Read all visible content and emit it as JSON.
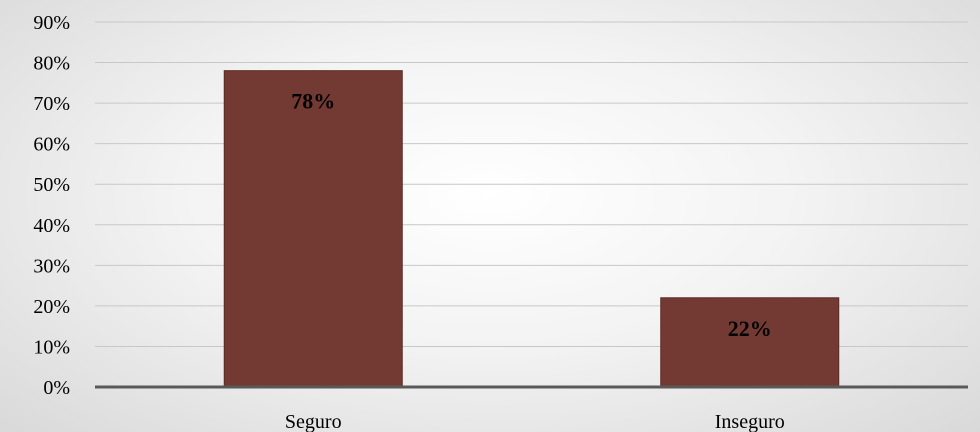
{
  "chart_data": {
    "type": "bar",
    "categories": [
      "Seguro",
      "Inseguro"
    ],
    "values": [
      78,
      22
    ],
    "data_labels": [
      "78%",
      "22%"
    ],
    "title": "",
    "xlabel": "",
    "ylabel": "",
    "ylim": [
      0,
      90
    ],
    "ytick_step": 10,
    "ytick_suffix": "%",
    "grid": true,
    "legend": "none",
    "colors": {
      "bar": "#733a33",
      "bar_edge": "#5a2a24",
      "grid": "#c8c8c8",
      "axis": "#595959"
    }
  }
}
